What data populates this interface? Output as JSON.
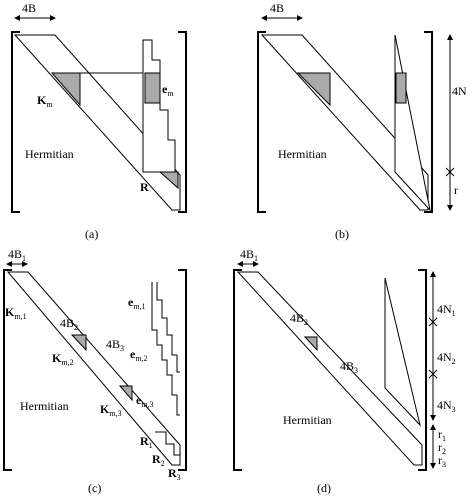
{
  "panels": [
    {
      "caption": "(a)",
      "labels": [
        {
          "text": "4B"
        },
        {
          "text": "K",
          "sub": "m"
        },
        {
          "text": "e",
          "sub": "m"
        },
        {
          "text": "Hermitian"
        },
        {
          "text": "R"
        }
      ]
    },
    {
      "caption": "(b)",
      "labels": [
        {
          "text": "4B"
        },
        {
          "text": "Hermitian"
        },
        {
          "text": "4N"
        },
        {
          "text": "r"
        }
      ]
    },
    {
      "caption": "(c)",
      "labels": [
        {
          "text": "4B",
          "sub": "1"
        },
        {
          "text": "K",
          "sub": "m,1"
        },
        {
          "text": "4B",
          "sub": "2"
        },
        {
          "text": "K",
          "sub": "m,2"
        },
        {
          "text": "4B",
          "sub": "3"
        },
        {
          "text": "K",
          "sub": "m,3"
        },
        {
          "text": "e",
          "sub": "m,1"
        },
        {
          "text": "e",
          "sub": "m,2"
        },
        {
          "text": "e",
          "sub": "m,3"
        },
        {
          "text": "Hermitian"
        },
        {
          "text": "R",
          "sub": "1"
        },
        {
          "text": "R",
          "sub": "2"
        },
        {
          "text": "R",
          "sub": "3"
        }
      ]
    },
    {
      "caption": "(d)",
      "labels": [
        {
          "text": "4B",
          "sub": "1"
        },
        {
          "text": "4B",
          "sub": "2"
        },
        {
          "text": "4B",
          "sub": "3"
        },
        {
          "text": "Hermitian"
        },
        {
          "text": "4N",
          "sub": "1"
        },
        {
          "text": "4N",
          "sub": "2"
        },
        {
          "text": "4N",
          "sub": "3"
        },
        {
          "text": "r",
          "sub": "1"
        },
        {
          "text": "r",
          "sub": "2"
        },
        {
          "text": "r",
          "sub": "3"
        }
      ]
    }
  ]
}
